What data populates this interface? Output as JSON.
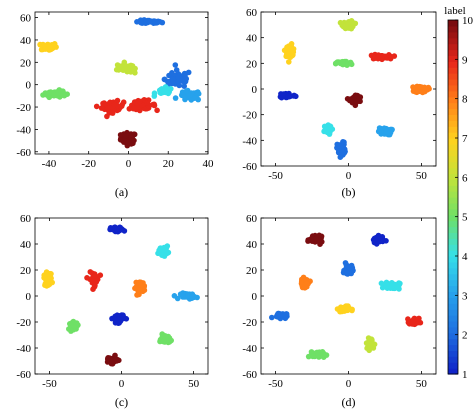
{
  "colors": {
    "1": "#1024c8",
    "2": "#1e6fe0",
    "3": "#27a2ec",
    "4": "#36e0e8",
    "5": "#6fe066",
    "6": "#c2e33a",
    "7": "#ffd21e",
    "8": "#ff7f19",
    "9": "#e8261a",
    "10": "#7a0d10"
  },
  "colorbar": {
    "title": "label",
    "ticks": [
      "1",
      "2",
      "3",
      "4",
      "5",
      "6",
      "7",
      "8",
      "9",
      "10"
    ],
    "range": [
      1,
      10
    ]
  },
  "chart_data": [
    {
      "type": "scatter",
      "panel_label": "(a)",
      "xlim": [
        -47,
        40
      ],
      "ylim": [
        -62,
        65
      ],
      "xticks": [
        "-40",
        "-20",
        "0",
        "20",
        "40"
      ],
      "yticks": [
        "60",
        "40",
        "20",
        "0",
        "-20",
        "-40",
        "-60"
      ],
      "clusters": [
        {
          "label": 10,
          "x": 0,
          "y": -48,
          "sx": 3.5,
          "sy": 4.5,
          "n": 60
        },
        {
          "label": 2,
          "x": 10,
          "y": 56,
          "sx": 6,
          "sy": 1.4,
          "n": 45
        },
        {
          "label": 7,
          "x": -40,
          "y": 34,
          "sx": 3.5,
          "sy": 3.2,
          "n": 45
        },
        {
          "label": 5,
          "x": -37,
          "y": -8,
          "sx": 5,
          "sy": 2.6,
          "n": 45
        },
        {
          "label": 6,
          "x": -2,
          "y": 15,
          "sx": 3.5,
          "sy": 4,
          "n": 35
        },
        {
          "label": 9,
          "x": -8,
          "y": -20,
          "sx": 5,
          "sy": 4.5,
          "n": 55
        },
        {
          "label": 9,
          "x": 7,
          "y": -18,
          "sx": 6,
          "sy": 3.5,
          "n": 45
        },
        {
          "label": 2,
          "x": 25,
          "y": 5,
          "sx": 6,
          "sy": 7,
          "n": 60
        },
        {
          "label": 3,
          "x": 31,
          "y": -10,
          "sx": 5,
          "sy": 4,
          "n": 35
        },
        {
          "label": 4,
          "x": 18,
          "y": -6,
          "sx": 4,
          "sy": 3,
          "n": 25
        }
      ]
    },
    {
      "type": "scatter",
      "panel_label": "(b)",
      "xlim": [
        -60,
        60
      ],
      "ylim": [
        -60,
        60
      ],
      "xticks": [
        "-50",
        "0",
        "50"
      ],
      "yticks": [
        "60",
        "40",
        "20",
        "0",
        "-20",
        "-40",
        "-60"
      ],
      "clusters": [
        {
          "label": 6,
          "x": 0,
          "y": 50,
          "sx": 3.5,
          "sy": 3,
          "n": 40
        },
        {
          "label": 7,
          "x": -40,
          "y": 30,
          "sx": 3,
          "sy": 4,
          "n": 40
        },
        {
          "label": 9,
          "x": 21,
          "y": 25,
          "sx": 6,
          "sy": 1.5,
          "n": 45
        },
        {
          "label": 5,
          "x": -3,
          "y": 20,
          "sx": 5,
          "sy": 1.5,
          "n": 40
        },
        {
          "label": 1,
          "x": -42,
          "y": -5,
          "sx": 5,
          "sy": 2,
          "n": 40
        },
        {
          "label": 10,
          "x": 5,
          "y": -8,
          "sx": 3.5,
          "sy": 3,
          "n": 40
        },
        {
          "label": 8,
          "x": 50,
          "y": 0,
          "sx": 4,
          "sy": 2.5,
          "n": 40
        },
        {
          "label": 4,
          "x": -15,
          "y": -32,
          "sx": 3,
          "sy": 3,
          "n": 35
        },
        {
          "label": 3,
          "x": 25,
          "y": -33,
          "sx": 4,
          "sy": 2.5,
          "n": 40
        },
        {
          "label": 2,
          "x": -5,
          "y": -47,
          "sx": 2.5,
          "sy": 5,
          "n": 45
        }
      ]
    },
    {
      "type": "scatter",
      "panel_label": "(c)",
      "xlim": [
        -60,
        60
      ],
      "ylim": [
        -60,
        60
      ],
      "xticks": [
        "-50",
        "0",
        "50"
      ],
      "yticks": [
        "60",
        "40",
        "20",
        "0",
        "-20",
        "-40",
        "-60"
      ],
      "clusters": [
        {
          "label": 1,
          "x": -3,
          "y": 51,
          "sx": 4,
          "sy": 1.8,
          "n": 40
        },
        {
          "label": 4,
          "x": 29,
          "y": 35,
          "sx": 3,
          "sy": 3,
          "n": 40
        },
        {
          "label": 7,
          "x": -51,
          "y": 13,
          "sx": 2.5,
          "sy": 4.5,
          "n": 40
        },
        {
          "label": 9,
          "x": -19,
          "y": 13,
          "sx": 3,
          "sy": 4.5,
          "n": 40
        },
        {
          "label": 8,
          "x": 13,
          "y": 7,
          "sx": 3,
          "sy": 4,
          "n": 40
        },
        {
          "label": 3,
          "x": 46,
          "y": 0,
          "sx": 4.5,
          "sy": 2,
          "n": 40
        },
        {
          "label": 5,
          "x": -33,
          "y": -23,
          "sx": 3,
          "sy": 2.5,
          "n": 40
        },
        {
          "label": 1,
          "x": -2,
          "y": -17,
          "sx": 3.5,
          "sy": 3,
          "n": 40
        },
        {
          "label": 5,
          "x": 30,
          "y": -33,
          "sx": 3,
          "sy": 3,
          "n": 40
        },
        {
          "label": 10,
          "x": -7,
          "y": -49,
          "sx": 4,
          "sy": 2.3,
          "n": 40
        }
      ]
    },
    {
      "type": "scatter",
      "panel_label": "(d)",
      "xlim": [
        -60,
        60
      ],
      "ylim": [
        -60,
        60
      ],
      "xticks": [
        "-50",
        "0",
        "50"
      ],
      "yticks": [
        "60",
        "40",
        "20",
        "0",
        "-20",
        "-40",
        "-60"
      ],
      "clusters": [
        {
          "label": 10,
          "x": -22,
          "y": 43,
          "sx": 4,
          "sy": 2.3,
          "n": 40
        },
        {
          "label": 1,
          "x": 20,
          "y": 43,
          "sx": 3.5,
          "sy": 2.5,
          "n": 40
        },
        {
          "label": 2,
          "x": 0,
          "y": 20,
          "sx": 2.5,
          "sy": 4,
          "n": 40
        },
        {
          "label": 8,
          "x": -30,
          "y": 10,
          "sx": 3,
          "sy": 3,
          "n": 40
        },
        {
          "label": 4,
          "x": 30,
          "y": 8,
          "sx": 4.5,
          "sy": 2.5,
          "n": 40
        },
        {
          "label": 2,
          "x": -47,
          "y": -15,
          "sx": 4,
          "sy": 1.8,
          "n": 40
        },
        {
          "label": 7,
          "x": -3,
          "y": -10,
          "sx": 3.5,
          "sy": 2,
          "n": 40
        },
        {
          "label": 9,
          "x": 45,
          "y": -20,
          "sx": 3,
          "sy": 2.5,
          "n": 40
        },
        {
          "label": 6,
          "x": 15,
          "y": -37,
          "sx": 2.5,
          "sy": 4,
          "n": 40
        },
        {
          "label": 5,
          "x": -20,
          "y": -45,
          "sx": 4,
          "sy": 2,
          "n": 40
        }
      ]
    }
  ]
}
